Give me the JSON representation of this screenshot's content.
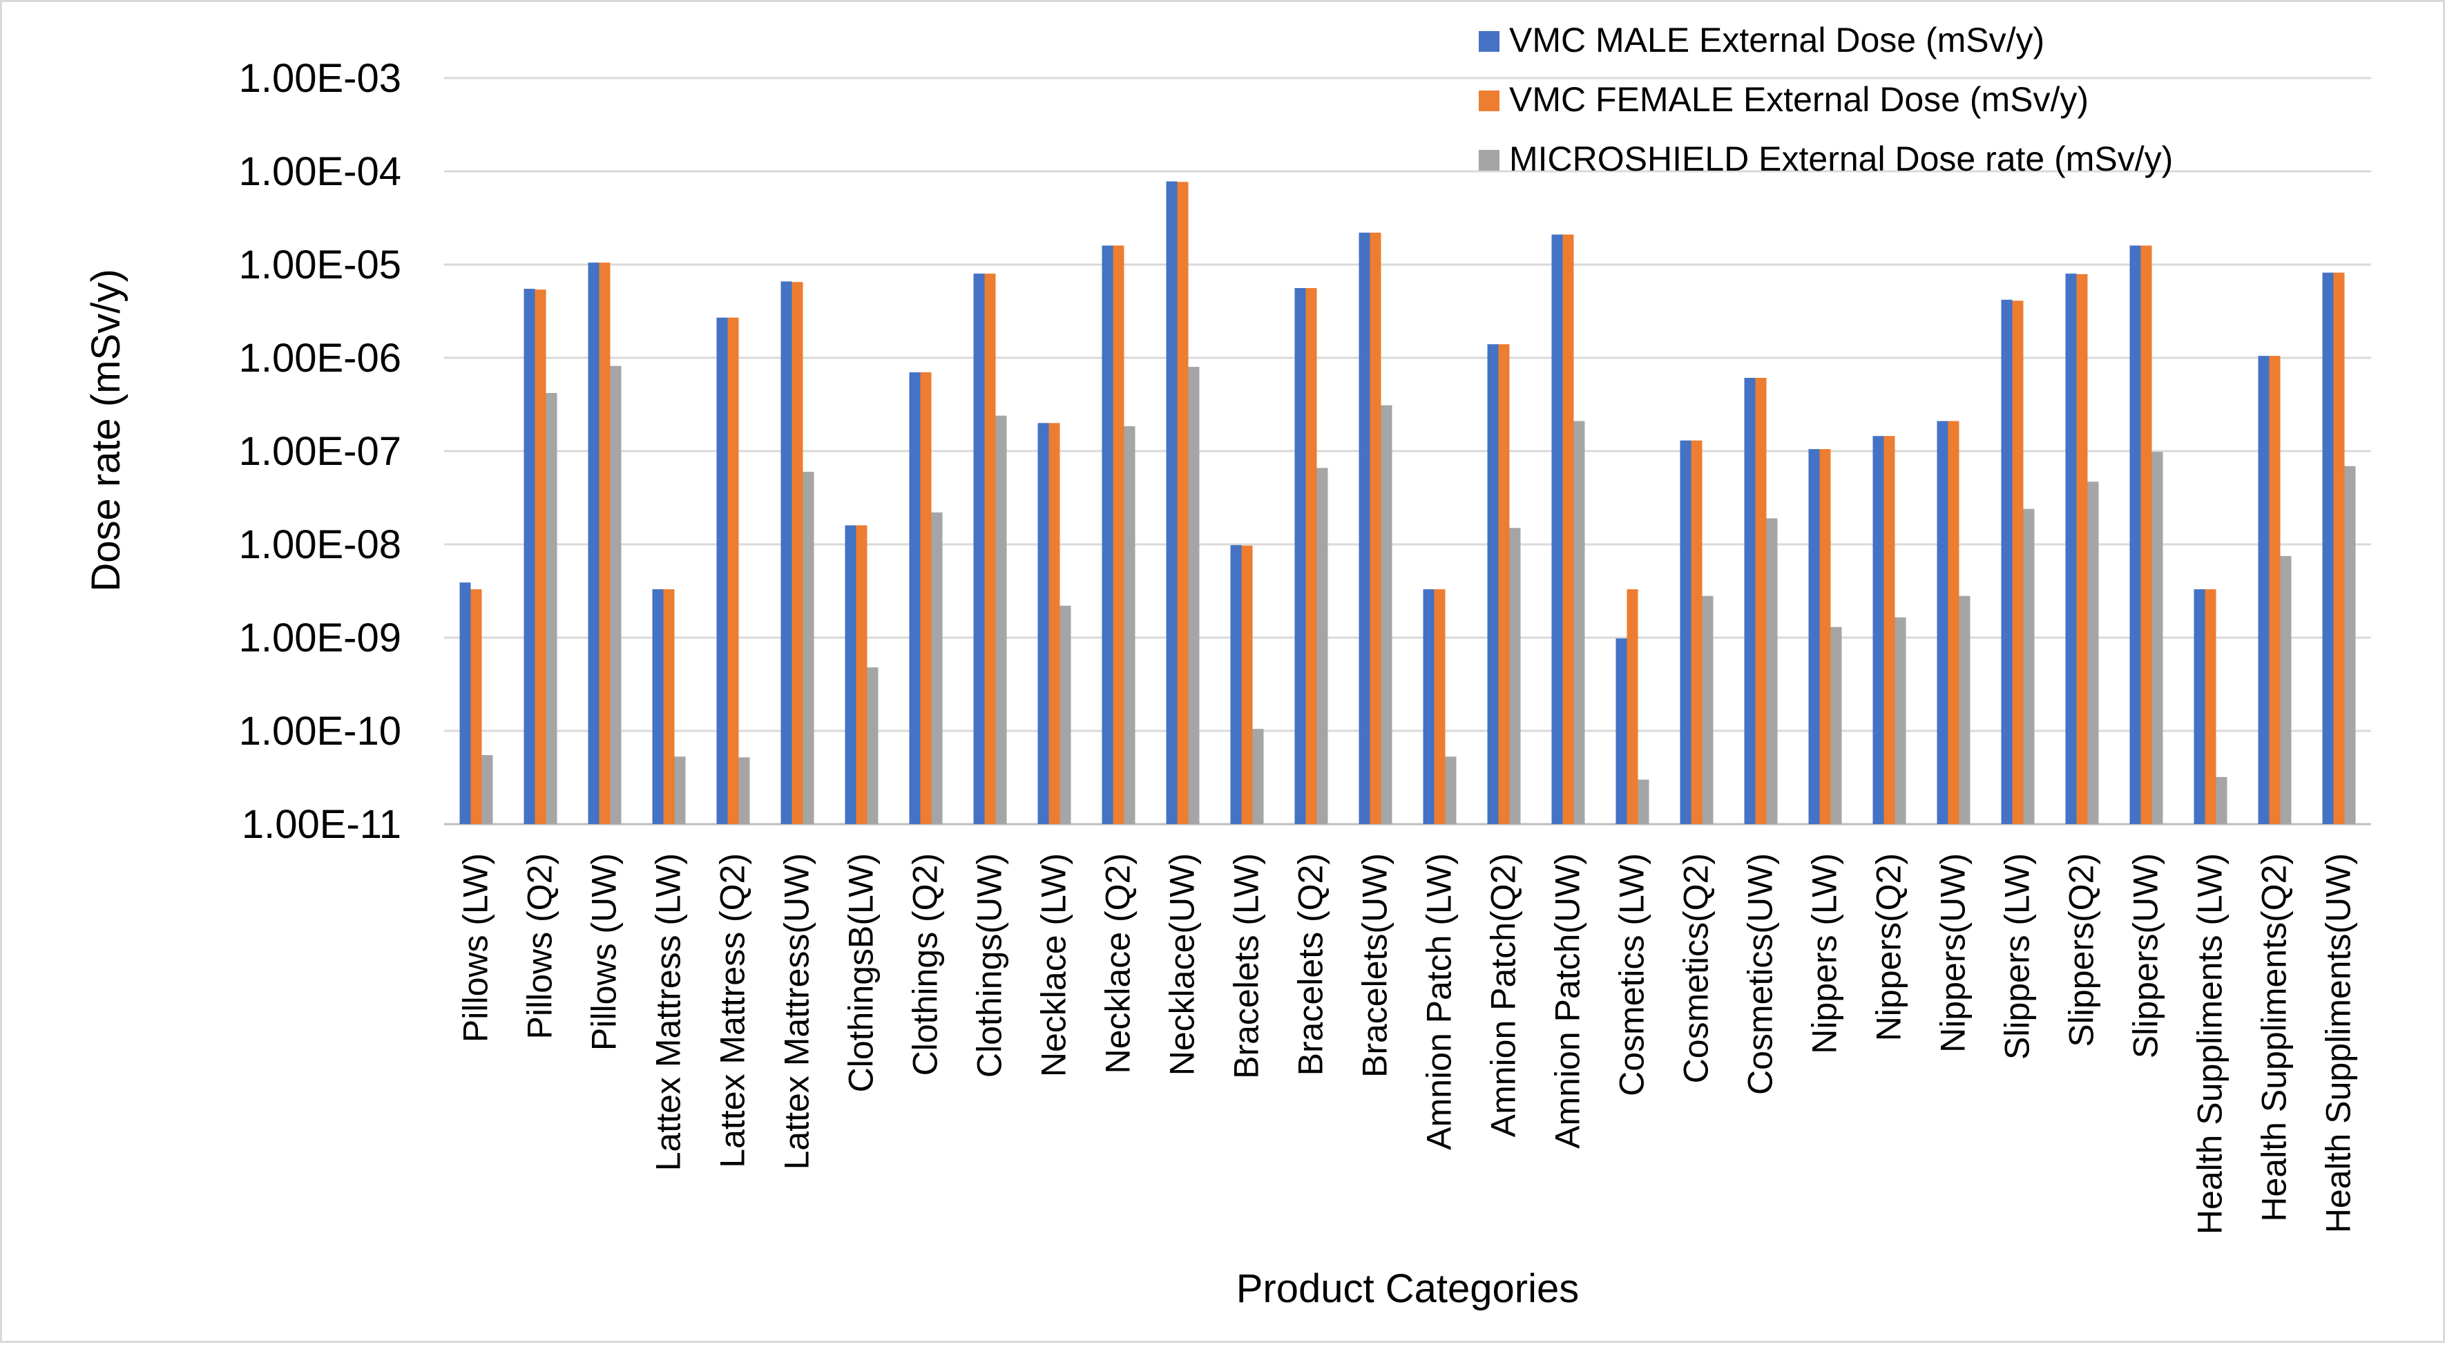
{
  "chart_data": {
    "type": "bar",
    "scale": "log",
    "title": "",
    "xlabel": "Product Categories",
    "ylabel": "Dose  rate (mSv/y)",
    "ylim": [
      1e-11,
      0.001
    ],
    "ytick_labels": [
      "1.00E-11",
      "1.00E-10",
      "1.00E-09",
      "1.00E-08",
      "1.00E-07",
      "1.00E-06",
      "1.00E-05",
      "1.00E-04",
      "1.00E-03"
    ],
    "grid": true,
    "legend_position": "top-right",
    "categories": [
      "Pillows (LW)",
      "Pillows (Q2)",
      "Pillows (UW)",
      "Lattex Mattress (LW)",
      "Lattex Mattress (Q2)",
      "Lattex Mattress(UW)",
      "ClothingsB(LW)",
      "Clothings (Q2)",
      "Clothings(UW)",
      "Necklace (LW)",
      "Necklace (Q2)",
      "Necklace(UW)",
      "Bracelets (LW)",
      "Bracelets (Q2)",
      "Bracelets(UW)",
      "Amnion Patch (LW)",
      "Amnion Patch(Q2)",
      "Amnion Patch(UW)",
      "Cosmetics (LW)",
      "Cosmetics(Q2)",
      "Cosmetics(UW)",
      "Nippers (LW)",
      "Nippers(Q2)",
      "Nippers(UW)",
      "Slippers (LW)",
      "Slippers(Q2)",
      "Slippers(UW)",
      "Health Suppliments (LW)",
      "Health Suppliments(Q2)",
      "Health Suppliments(UW)"
    ],
    "series": [
      {
        "name": "VMC MALE  External Dose (mSv/y)",
        "color": "#4472C4",
        "values": [
          3.9e-09,
          5.5e-06,
          1.05e-05,
          3.3e-09,
          2.7e-06,
          6.6e-06,
          1.6e-08,
          7e-07,
          8e-06,
          2e-07,
          1.6e-05,
          7.8e-05,
          9.8e-09,
          5.6e-06,
          2.2e-05,
          3.3e-09,
          1.4e-06,
          2.1e-05,
          9.8e-10,
          1.3e-07,
          6.1e-07,
          1.05e-07,
          1.45e-07,
          2.1e-07,
          4.2e-06,
          8e-06,
          1.6e-05,
          3.3e-09,
          1.05e-06,
          8.2e-06
        ]
      },
      {
        "name": "VMC FEMALE  External Dose (mSv/y)",
        "color": "#ED7D31",
        "values": [
          3.3e-09,
          5.4e-06,
          1.05e-05,
          3.3e-09,
          2.7e-06,
          6.5e-06,
          1.6e-08,
          7e-07,
          8e-06,
          2e-07,
          1.6e-05,
          7.7e-05,
          9.7e-09,
          5.6e-06,
          2.2e-05,
          3.3e-09,
          1.4e-06,
          2.1e-05,
          3.3e-09,
          1.3e-07,
          6.1e-07,
          1.05e-07,
          1.45e-07,
          2.1e-07,
          4.1e-06,
          7.9e-06,
          1.6e-05,
          3.3e-09,
          1.05e-06,
          8.2e-06
        ]
      },
      {
        "name": "MICROSHIELD External Dose rate (mSv/y)",
        "color": "#A5A5A5",
        "values": [
          5.5e-11,
          4.2e-07,
          8.2e-07,
          5.3e-11,
          5.2e-11,
          6e-08,
          4.8e-10,
          2.2e-08,
          2.4e-07,
          2.2e-09,
          1.85e-07,
          8e-07,
          1.05e-10,
          6.6e-08,
          3.1e-07,
          5.3e-11,
          1.5e-08,
          2.1e-07,
          3e-11,
          2.8e-09,
          1.9e-08,
          1.3e-09,
          1.65e-09,
          2.8e-09,
          2.4e-08,
          4.7e-08,
          9.8e-08,
          3.2e-11,
          7.5e-09,
          6.9e-08
        ]
      }
    ]
  }
}
